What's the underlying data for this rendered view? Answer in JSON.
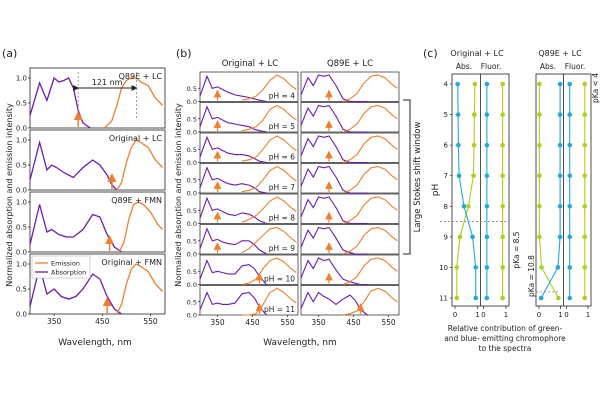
{
  "figure": {
    "panel_labels": [
      "(a)",
      "(b)",
      "(c)"
    ],
    "colors": {
      "emission": "#f07f2e",
      "absorption": "#6a1bb5",
      "green_chrom": "#a8d21e",
      "blue_chrom": "#24a7d9",
      "axis": "#222222",
      "guide": "#888888"
    }
  },
  "panel_a": {
    "ylabel": "Normalized absorption and emission intensity",
    "xlabel": "Wavelength, nm",
    "xticks": [
      "350",
      "450",
      "550"
    ],
    "yticks": [
      "0.0",
      "0.5",
      "1.0"
    ],
    "stokes_label": "121 nm",
    "legend": {
      "emission": "Emission",
      "absorption": "Absorption"
    },
    "subplot_titles": [
      "Q89E + LC",
      "Original + LC",
      "Q89E + FMN",
      "Original + FMN"
    ]
  },
  "panel_b": {
    "col_titles": [
      "Original + LC",
      "Q89E + LC"
    ],
    "ylabel": "Normalized absorption and emission intensity",
    "xlabel": "Wavelength, nm",
    "xticks": [
      "350",
      "450",
      "550"
    ],
    "yticks": [
      "0.0",
      "0.5"
    ],
    "ph_labels": [
      "pH = 4",
      "pH = 5",
      "pH = 6",
      "pH = 7",
      "pH = 8",
      "pH = 9",
      "pH = 10",
      "pH = 11"
    ],
    "bracket_label": "Large Stokes shift window"
  },
  "panel_c": {
    "col_titles": [
      "Original + LC",
      "Q89E + LC"
    ],
    "sub_titles": [
      "Abs.",
      "Fluor.",
      "Abs.",
      "Fluor."
    ],
    "ylabel": "pH",
    "yticks": [
      "4",
      "5",
      "6",
      "7",
      "8",
      "9",
      "10",
      "11"
    ],
    "xticks": [
      "0",
      "1",
      "0",
      "1",
      "0",
      "1",
      "0",
      "1"
    ],
    "xlabel_lines": [
      "Relative contribution of green-",
      "and blue- emitting chromophore",
      "to the spectra"
    ],
    "pka_labels": [
      "pKa = 8.5",
      "pKa = 10.8",
      "pKa < 4"
    ]
  },
  "chart_data": [
    {
      "type": "line",
      "title": "",
      "xlabel": "Wavelength, nm",
      "ylabel": "Normalized absorption and emission intensity",
      "xlim": [
        300,
        580
      ],
      "ylim": [
        0,
        1.2
      ],
      "subplots": [
        {
          "name": "Q89E + LC",
          "series": [
            {
              "name": "Absorption",
              "x": [
                300,
                320,
                335,
                350,
                360,
                370,
                380,
                390,
                400,
                410,
                425
              ],
              "values": [
                0.25,
                0.9,
                0.55,
                1.0,
                0.92,
                0.95,
                1.0,
                0.8,
                0.35,
                0.1,
                0.0
              ]
            },
            {
              "name": "Emission",
              "x": [
                455,
                470,
                480,
                490,
                500,
                510,
                520,
                530,
                545,
                560,
                575
              ],
              "values": [
                0.0,
                0.15,
                0.45,
                0.8,
                0.95,
                1.0,
                1.0,
                0.92,
                0.85,
                0.6,
                0.45
              ]
            }
          ]
        },
        {
          "name": "Original + LC",
          "series": [
            {
              "name": "Absorption",
              "x": [
                300,
                320,
                335,
                345,
                355,
                370,
                390,
                410,
                430,
                445,
                460,
                470,
                480
              ],
              "values": [
                0.2,
                0.95,
                0.4,
                0.5,
                0.45,
                0.35,
                0.25,
                0.45,
                0.6,
                0.5,
                0.3,
                0.1,
                0.0
              ]
            },
            {
              "name": "Emission",
              "x": [
                480,
                490,
                500,
                510,
                520,
                530,
                545,
                560,
                575
              ],
              "values": [
                0.0,
                0.15,
                0.55,
                0.85,
                1.0,
                0.95,
                0.85,
                0.6,
                0.45
              ]
            }
          ]
        },
        {
          "name": "Q89E + FMN",
          "series": [
            {
              "name": "Absorption",
              "x": [
                300,
                320,
                335,
                345,
                360,
                375,
                390,
                410,
                430,
                445,
                460,
                475,
                490
              ],
              "values": [
                0.15,
                0.95,
                0.4,
                0.45,
                0.35,
                0.3,
                0.3,
                0.45,
                0.75,
                0.7,
                0.35,
                0.1,
                0.0
              ]
            },
            {
              "name": "Emission",
              "x": [
                485,
                495,
                505,
                515,
                525,
                535,
                550,
                565,
                575
              ],
              "values": [
                0.0,
                0.2,
                0.65,
                0.95,
                1.0,
                0.95,
                0.8,
                0.55,
                0.45
              ]
            }
          ]
        },
        {
          "name": "Original + FMN",
          "series": [
            {
              "name": "Absorption",
              "x": [
                300,
                320,
                335,
                350,
                365,
                380,
                395,
                410,
                430,
                445,
                460,
                475,
                490
              ],
              "values": [
                0.15,
                0.95,
                0.4,
                0.5,
                0.35,
                0.3,
                0.35,
                0.5,
                0.8,
                0.7,
                0.35,
                0.1,
                0.0
              ]
            },
            {
              "name": "Emission",
              "x": [
                480,
                490,
                500,
                510,
                520,
                530,
                545,
                560,
                575
              ],
              "values": [
                0.0,
                0.2,
                0.6,
                0.9,
                1.0,
                0.95,
                0.85,
                0.6,
                0.45
              ]
            }
          ]
        }
      ]
    },
    {
      "type": "line",
      "title": "",
      "xlabel": "Wavelength, nm",
      "ylabel": "Normalized absorption and emission intensity",
      "xlim": [
        300,
        580
      ],
      "ylim": [
        0,
        1.0
      ],
      "columns": [
        "Original + LC",
        "Q89E + LC"
      ],
      "rows": [
        "pH = 4",
        "pH = 5",
        "pH = 6",
        "pH = 7",
        "pH = 8",
        "pH = 9",
        "pH = 10",
        "pH = 11"
      ],
      "absorption_x": [
        300,
        320,
        335,
        350,
        365,
        380,
        400,
        420,
        440,
        455,
        470,
        490
      ],
      "emission_x": [
        420,
        440,
        460,
        480,
        500,
        520,
        540,
        560,
        575
      ],
      "original_lc": [
        {
          "absorption": [
            0.2,
            0.95,
            0.5,
            0.55,
            0.45,
            0.35,
            0.25,
            0.2,
            0.15,
            0.1,
            0.05,
            0.0
          ],
          "emission": [
            0.05,
            0.1,
            0.2,
            0.45,
            0.8,
            1.0,
            0.85,
            0.6,
            0.45
          ]
        },
        {
          "absorption": [
            0.2,
            0.95,
            0.5,
            0.55,
            0.45,
            0.35,
            0.3,
            0.25,
            0.2,
            0.1,
            0.05,
            0.0
          ],
          "emission": [
            0.05,
            0.1,
            0.2,
            0.45,
            0.85,
            1.0,
            0.85,
            0.6,
            0.45
          ]
        },
        {
          "absorption": [
            0.2,
            0.95,
            0.5,
            0.55,
            0.45,
            0.35,
            0.3,
            0.3,
            0.25,
            0.15,
            0.05,
            0.0
          ],
          "emission": [
            0.05,
            0.1,
            0.2,
            0.5,
            0.85,
            1.0,
            0.85,
            0.6,
            0.45
          ]
        },
        {
          "absorption": [
            0.2,
            0.95,
            0.5,
            0.55,
            0.45,
            0.35,
            0.3,
            0.35,
            0.3,
            0.2,
            0.05,
            0.0
          ],
          "emission": [
            0.05,
            0.1,
            0.2,
            0.5,
            0.85,
            1.0,
            0.85,
            0.6,
            0.45
          ]
        },
        {
          "absorption": [
            0.2,
            0.95,
            0.5,
            0.55,
            0.45,
            0.35,
            0.3,
            0.4,
            0.35,
            0.25,
            0.1,
            0.0
          ],
          "emission": [
            0.05,
            0.15,
            0.3,
            0.55,
            0.85,
            1.0,
            0.85,
            0.6,
            0.45
          ]
        },
        {
          "absorption": [
            0.2,
            0.95,
            0.5,
            0.55,
            0.45,
            0.4,
            0.35,
            0.5,
            0.5,
            0.35,
            0.15,
            0.0
          ],
          "emission": [
            0.05,
            0.2,
            0.45,
            0.7,
            0.95,
            1.0,
            0.85,
            0.6,
            0.45
          ]
        },
        {
          "absorption": [
            0.2,
            0.9,
            0.45,
            0.5,
            0.45,
            0.4,
            0.4,
            0.7,
            0.75,
            0.6,
            0.3,
            0.0
          ],
          "emission": [
            0.0,
            0.05,
            0.2,
            0.6,
            0.9,
            1.0,
            0.85,
            0.6,
            0.45
          ]
        },
        {
          "absorption": [
            0.2,
            0.85,
            0.4,
            0.45,
            0.4,
            0.4,
            0.45,
            0.8,
            0.85,
            0.65,
            0.3,
            0.0
          ],
          "emission": [
            0.0,
            0.0,
            0.05,
            0.4,
            0.85,
            1.0,
            0.85,
            0.6,
            0.45
          ]
        }
      ],
      "q89e_lc": [
        {
          "absorption": [
            0.25,
            0.9,
            0.6,
            1.0,
            0.95,
            1.0,
            0.6,
            0.1,
            0.0,
            0.0,
            0.0,
            0.0
          ],
          "emission": [
            0.0,
            0.1,
            0.3,
            0.7,
            0.95,
            1.0,
            0.9,
            0.65,
            0.5
          ]
        },
        {
          "absorption": [
            0.25,
            0.9,
            0.6,
            1.0,
            0.95,
            1.0,
            0.6,
            0.1,
            0.0,
            0.0,
            0.0,
            0.0
          ],
          "emission": [
            0.0,
            0.1,
            0.3,
            0.7,
            0.95,
            1.0,
            0.9,
            0.65,
            0.5
          ]
        },
        {
          "absorption": [
            0.25,
            0.9,
            0.6,
            1.0,
            0.95,
            1.0,
            0.6,
            0.1,
            0.0,
            0.0,
            0.0,
            0.0
          ],
          "emission": [
            0.0,
            0.1,
            0.3,
            0.7,
            0.95,
            1.0,
            0.9,
            0.65,
            0.5
          ]
        },
        {
          "absorption": [
            0.25,
            0.9,
            0.6,
            1.0,
            0.95,
            1.0,
            0.6,
            0.1,
            0.0,
            0.0,
            0.0,
            0.0
          ],
          "emission": [
            0.0,
            0.1,
            0.3,
            0.7,
            0.95,
            1.0,
            0.9,
            0.65,
            0.5
          ]
        },
        {
          "absorption": [
            0.25,
            0.9,
            0.6,
            1.0,
            0.95,
            1.0,
            0.6,
            0.1,
            0.0,
            0.0,
            0.0,
            0.0
          ],
          "emission": [
            0.0,
            0.1,
            0.3,
            0.7,
            0.95,
            1.0,
            0.9,
            0.65,
            0.5
          ]
        },
        {
          "absorption": [
            0.25,
            0.9,
            0.6,
            1.0,
            0.95,
            1.0,
            0.6,
            0.15,
            0.05,
            0.0,
            0.0,
            0.0
          ],
          "emission": [
            0.0,
            0.1,
            0.3,
            0.7,
            0.95,
            1.0,
            0.9,
            0.65,
            0.5
          ]
        },
        {
          "absorption": [
            0.25,
            0.9,
            0.6,
            1.0,
            0.9,
            0.95,
            0.55,
            0.2,
            0.1,
            0.05,
            0.0,
            0.0
          ],
          "emission": [
            0.0,
            0.1,
            0.3,
            0.7,
            0.95,
            1.0,
            0.9,
            0.65,
            0.5
          ]
        },
        {
          "absorption": [
            0.25,
            0.85,
            0.5,
            0.85,
            0.7,
            0.6,
            0.4,
            0.6,
            0.75,
            0.55,
            0.2,
            0.0
          ],
          "emission": [
            0.0,
            0.05,
            0.15,
            0.5,
            0.9,
            1.0,
            0.9,
            0.65,
            0.5
          ]
        }
      ]
    },
    {
      "type": "line",
      "title": "",
      "xlabel": "Relative contribution of green- and blue- emitting chromophore to the spectra",
      "ylabel": "pH",
      "xlim": [
        0,
        1
      ],
      "ylim": [
        4,
        11
      ],
      "y": [
        4,
        5,
        6,
        7,
        8,
        9,
        10,
        11
      ],
      "subplots": [
        {
          "name": "Original + LC Abs.",
          "series": [
            {
              "name": "green",
              "values": [
                0.88,
                0.86,
                0.85,
                0.82,
                0.6,
                0.22,
                0.08,
                0.08
              ]
            },
            {
              "name": "blue",
              "values": [
                0.12,
                0.14,
                0.15,
                0.18,
                0.4,
                0.78,
                0.92,
                0.92
              ]
            }
          ]
        },
        {
          "name": "Original + LC Fluor.",
          "series": [
            {
              "name": "green",
              "values": [
                0.85,
                0.85,
                0.85,
                0.85,
                0.85,
                0.85,
                0.85,
                0.85
              ]
            },
            {
              "name": "blue",
              "values": [
                0.15,
                0.15,
                0.15,
                0.15,
                0.15,
                0.15,
                0.15,
                0.15
              ]
            }
          ]
        },
        {
          "name": "Q89E + LC Abs.",
          "series": [
            {
              "name": "green",
              "values": [
                0.02,
                0.02,
                0.02,
                0.02,
                0.02,
                0.02,
                0.12,
                0.9
              ]
            },
            {
              "name": "blue",
              "values": [
                0.98,
                0.98,
                0.98,
                0.98,
                0.98,
                0.98,
                0.88,
                0.1
              ]
            }
          ]
        },
        {
          "name": "Q89E + LC Fluor.",
          "series": [
            {
              "name": "green",
              "values": [
                0.85,
                0.85,
                0.85,
                0.85,
                0.85,
                0.85,
                0.85,
                0.85
              ]
            },
            {
              "name": "blue",
              "values": [
                0.15,
                0.15,
                0.15,
                0.15,
                0.15,
                0.15,
                0.15,
                0.15
              ]
            }
          ]
        }
      ]
    }
  ]
}
